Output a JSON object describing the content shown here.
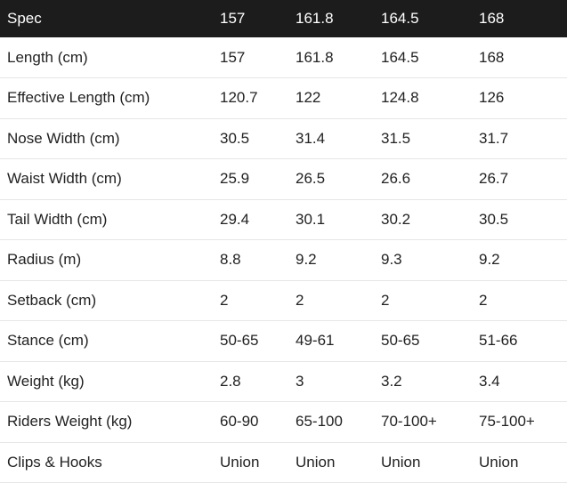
{
  "table": {
    "headers": [
      "Spec",
      "157",
      "161.8",
      "164.5",
      "168"
    ],
    "rows": [
      [
        "Length (cm)",
        "157",
        "161.8",
        "164.5",
        "168"
      ],
      [
        "Effective Length (cm)",
        "120.7",
        "122",
        "124.8",
        "126"
      ],
      [
        "Nose Width (cm)",
        "30.5",
        "31.4",
        "31.5",
        "31.7"
      ],
      [
        "Waist Width (cm)",
        "25.9",
        "26.5",
        "26.6",
        "26.7"
      ],
      [
        "Tail Width (cm)",
        "29.4",
        "30.1",
        "30.2",
        "30.5"
      ],
      [
        "Radius (m)",
        "8.8",
        "9.2",
        "9.3",
        "9.2"
      ],
      [
        "Setback (cm)",
        "2",
        "2",
        "2",
        "2"
      ],
      [
        "Stance (cm)",
        "50-65",
        "49-61",
        "50-65",
        "51-66"
      ],
      [
        "Weight (kg)",
        "2.8",
        "3",
        "3.2",
        "3.4"
      ],
      [
        "Riders Weight (kg)",
        "60-90",
        "65-100",
        "70-100+",
        "75-100+"
      ],
      [
        "Clips & Hooks",
        "Union",
        "Union",
        "Union",
        "Union"
      ]
    ]
  }
}
